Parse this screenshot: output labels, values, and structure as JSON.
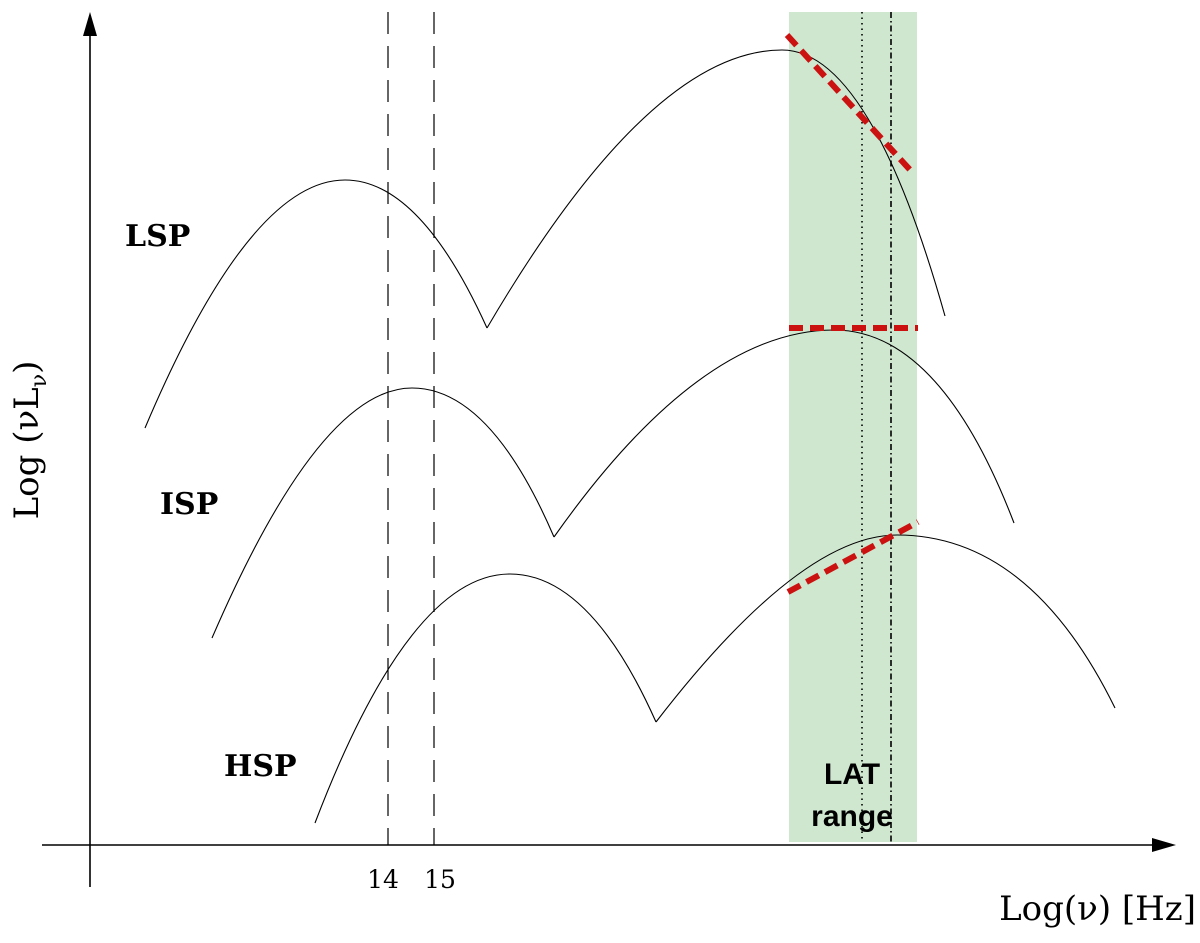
{
  "colors": {
    "lat_band": "#cfe6cf",
    "slope": "#cc1111",
    "ink": "#000000"
  },
  "labels": {
    "y_axis": "Log (νL",
    "y_axis_sub": "ν",
    "y_axis_close": ")",
    "x_axis": "Log(ν)   [Hz]",
    "tick_14": "14",
    "tick_15": "15",
    "lsp": "LSP",
    "isp": "ISP",
    "hsp": "HSP",
    "lat_line1": "LAT",
    "lat_line2": "range"
  },
  "curves": [
    "LSP",
    "ISP",
    "HSP"
  ]
}
